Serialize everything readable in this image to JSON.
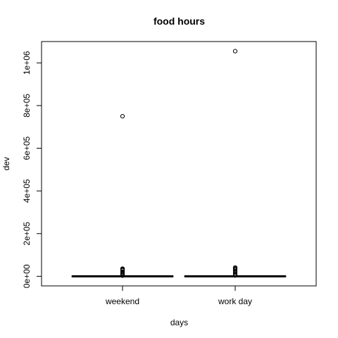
{
  "chart_data": {
    "type": "box",
    "title": "food hours",
    "xlabel": "days",
    "ylabel": "dev",
    "ylim": [
      -45000,
      1100000
    ],
    "yticks": [
      0,
      200000,
      400000,
      600000,
      800000,
      1000000
    ],
    "ytick_labels": [
      "0e+00",
      "2e+05",
      "4e+05",
      "6e+05",
      "8e+05",
      "1e+06"
    ],
    "categories": [
      "weekend",
      "work day"
    ],
    "boxes": [
      {
        "category": "weekend",
        "q1": 0,
        "median": 0,
        "q3": 500,
        "whisker_low": 0,
        "whisker_high": 1200,
        "outliers": [
          750000,
          36000,
          33000,
          31000,
          28000,
          22000,
          15000,
          10000,
          6000,
          3000
        ]
      },
      {
        "category": "work day",
        "q1": 0,
        "median": 0,
        "q3": 600,
        "whisker_low": 0,
        "whisker_high": 1500,
        "outliers": [
          1055000,
          41000,
          38000,
          34000,
          30000,
          25000,
          18000,
          12000,
          7000,
          4000
        ]
      }
    ],
    "grid": false,
    "legend": "none"
  }
}
